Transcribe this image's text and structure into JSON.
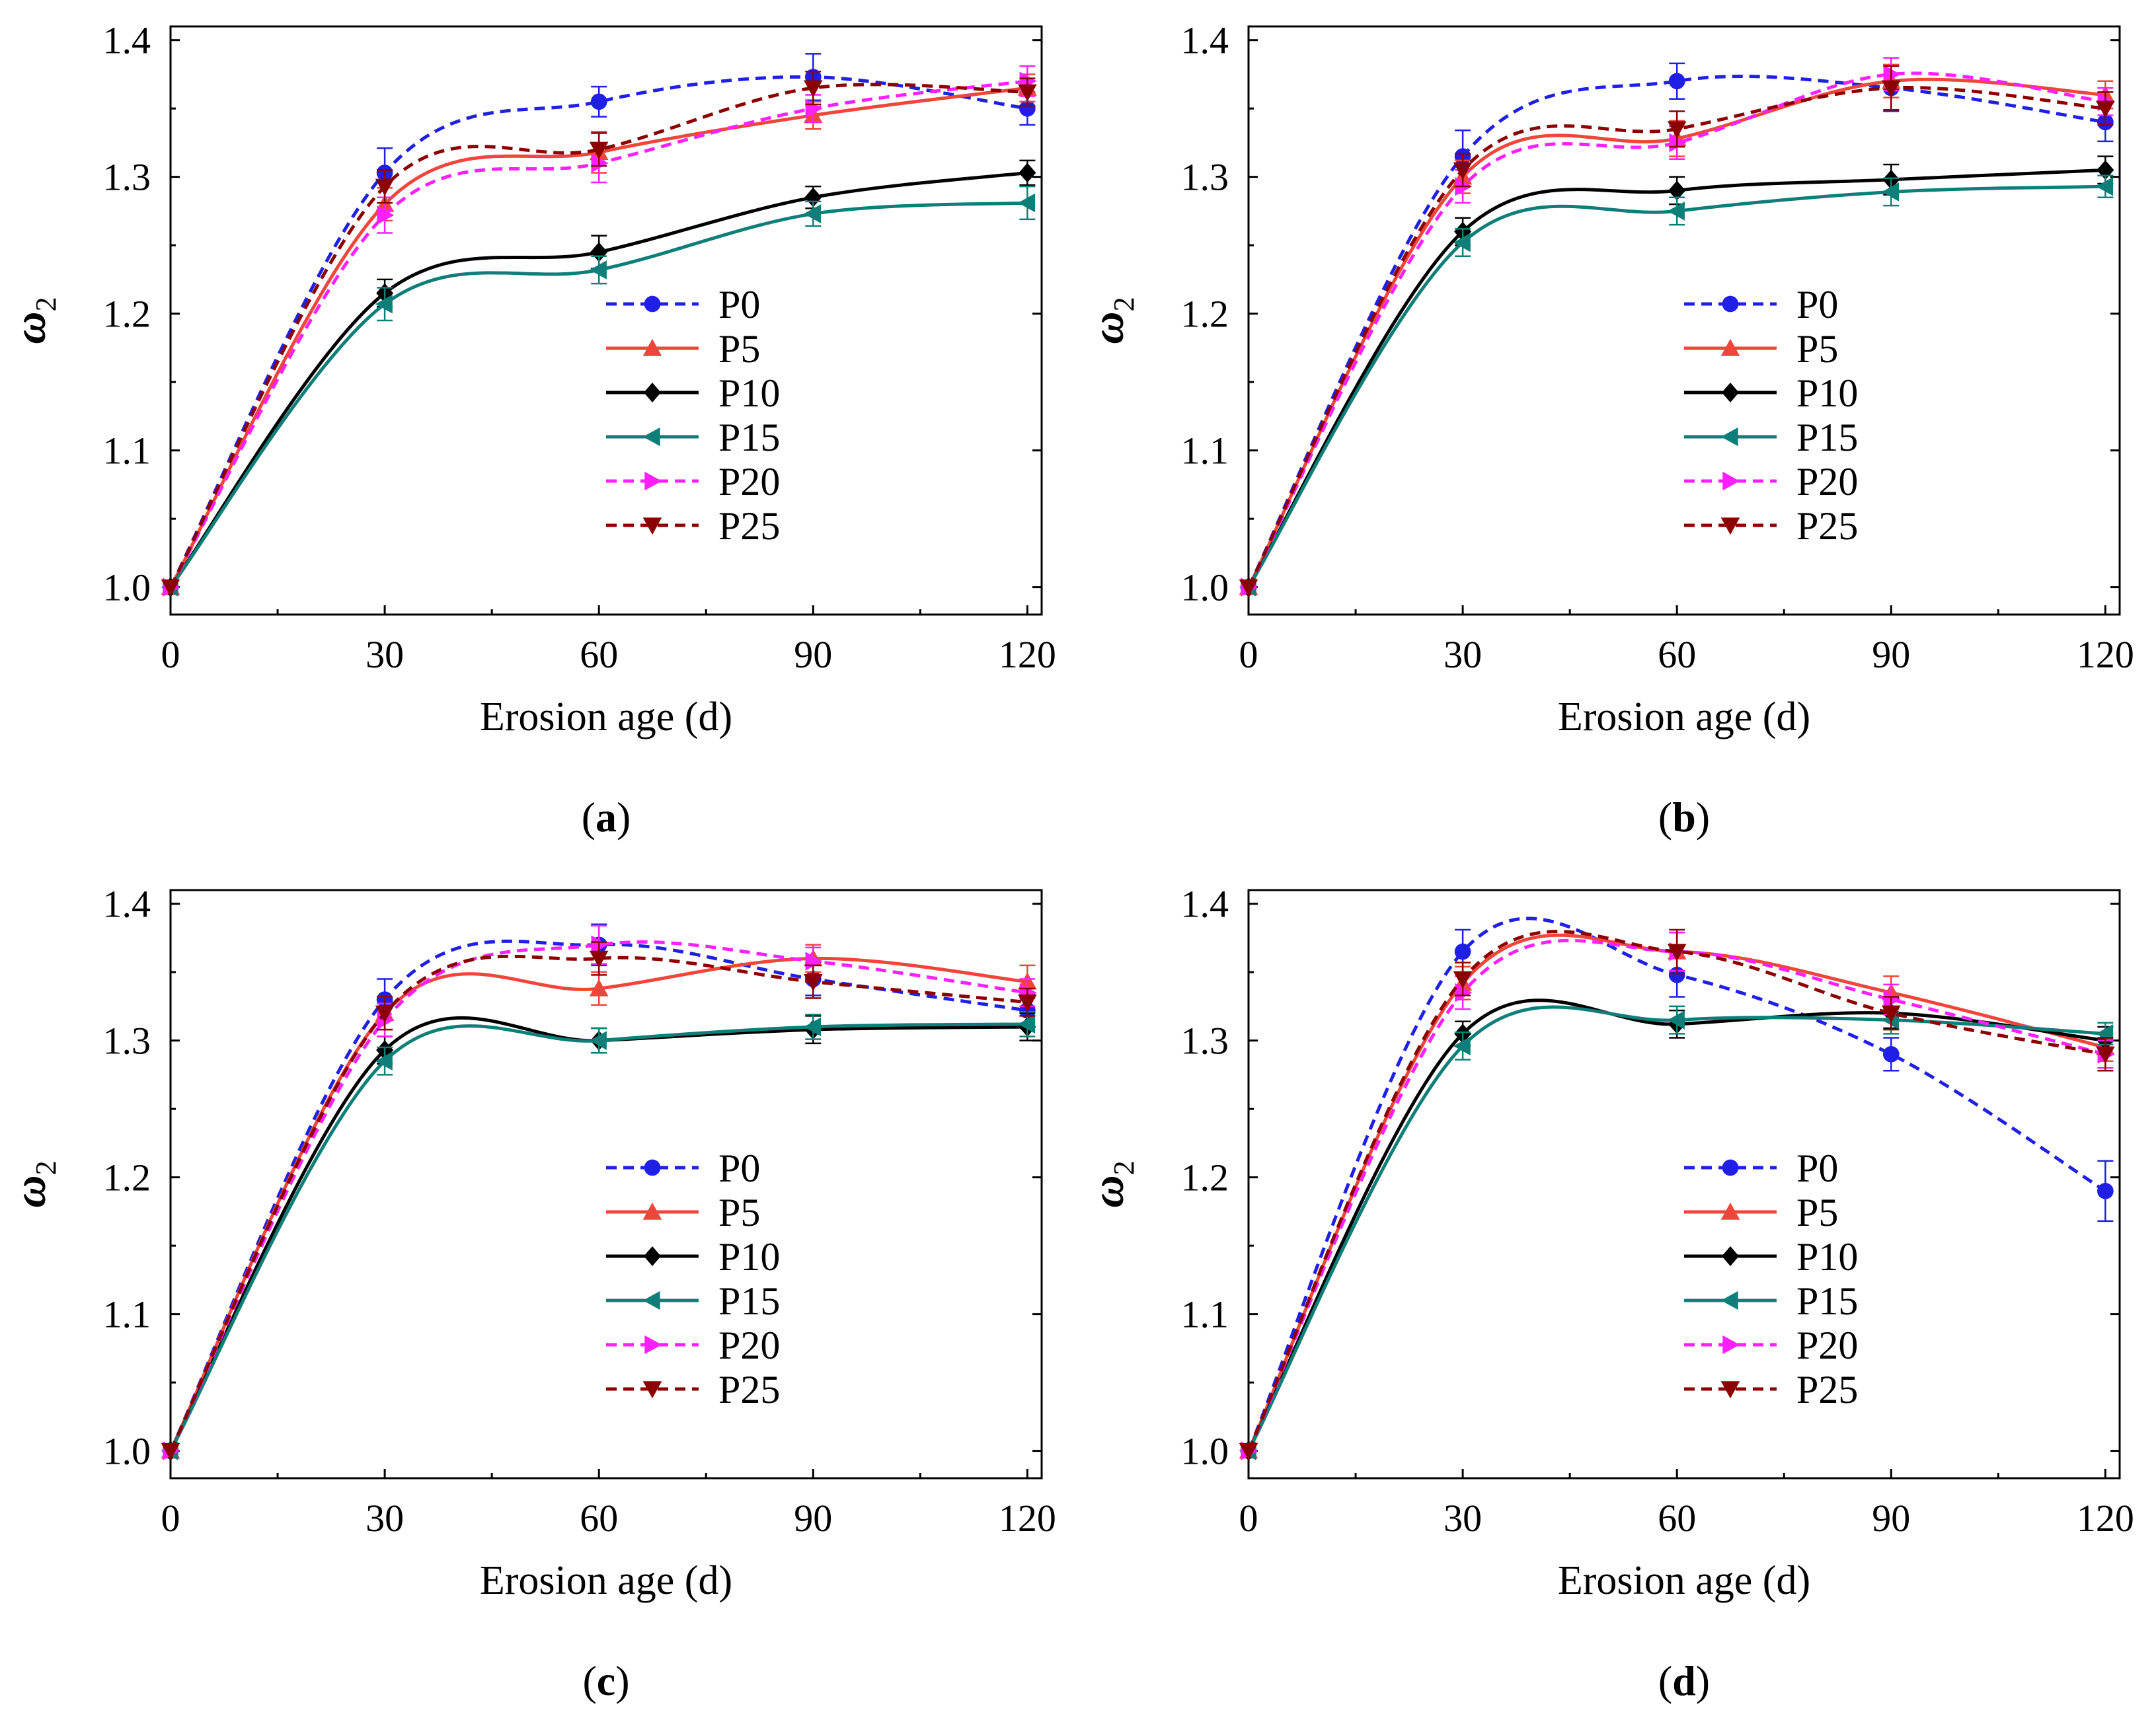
{
  "figure": {
    "series_styles": [
      {
        "name": "P0",
        "color": "#1f1fe6",
        "dashed": true,
        "marker": "circle"
      },
      {
        "name": "P5",
        "color": "#f0453a",
        "dashed": false,
        "marker": "triangle-up"
      },
      {
        "name": "P10",
        "color": "#000000",
        "dashed": false,
        "marker": "diamond"
      },
      {
        "name": "P15",
        "color": "#0e7f78",
        "dashed": false,
        "marker": "triangle-left"
      },
      {
        "name": "P20",
        "color": "#ff1fff",
        "dashed": true,
        "marker": "triangle-right"
      },
      {
        "name": "P25",
        "color": "#8b0000",
        "dashed": true,
        "marker": "triangle-down"
      }
    ]
  },
  "chart_data": [
    {
      "type": "line",
      "panel_label": "a",
      "title": "",
      "xlabel": "Erosion age (d)",
      "ylabel_symbol": "ω",
      "ylabel_subscript": "2",
      "x": [
        0,
        30,
        60,
        90,
        120
      ],
      "xticks": [
        "0",
        "30",
        "60",
        "90",
        "120"
      ],
      "yticks": [
        "1.0",
        "1.1",
        "1.2",
        "1.3",
        "1.4"
      ],
      "xlim": [
        0,
        122
      ],
      "ylim": [
        0.98,
        1.41
      ],
      "legend_position": "center-right",
      "series": [
        {
          "name": "P0",
          "values": [
            1.0,
            1.303,
            1.355,
            1.373,
            1.35
          ],
          "errors": [
            0,
            0.018,
            0.011,
            0.017,
            0.012
          ]
        },
        {
          "name": "P5",
          "values": [
            1.0,
            1.28,
            1.318,
            1.345,
            1.365
          ],
          "errors": [
            0,
            0.012,
            0.015,
            0.01,
            0.01
          ]
        },
        {
          "name": "P10",
          "values": [
            1.0,
            1.215,
            1.245,
            1.285,
            1.303
          ],
          "errors": [
            0,
            0.01,
            0.012,
            0.008,
            0.009
          ]
        },
        {
          "name": "P15",
          "values": [
            1.0,
            1.207,
            1.232,
            1.273,
            1.281
          ],
          "errors": [
            0,
            0.012,
            0.01,
            0.009,
            0.012
          ]
        },
        {
          "name": "P20",
          "values": [
            1.0,
            1.272,
            1.31,
            1.35,
            1.37
          ],
          "errors": [
            0,
            0.013,
            0.014,
            0.01,
            0.011
          ]
        },
        {
          "name": "P25",
          "values": [
            1.0,
            1.293,
            1.32,
            1.365,
            1.362
          ],
          "errors": [
            0,
            0.012,
            0.012,
            0.012,
            0.01
          ]
        }
      ]
    },
    {
      "type": "line",
      "panel_label": "b",
      "title": "",
      "xlabel": "Erosion age (d)",
      "ylabel_symbol": "ω",
      "ylabel_subscript": "2",
      "x": [
        0,
        30,
        60,
        90,
        120
      ],
      "xticks": [
        "0",
        "30",
        "60",
        "90",
        "120"
      ],
      "yticks": [
        "1.0",
        "1.1",
        "1.2",
        "1.3",
        "1.4"
      ],
      "xlim": [
        0,
        122
      ],
      "ylim": [
        0.98,
        1.41
      ],
      "legend_position": "center-right",
      "series": [
        {
          "name": "P0",
          "values": [
            1.0,
            1.315,
            1.37,
            1.365,
            1.34
          ],
          "errors": [
            0,
            0.019,
            0.013,
            0.017,
            0.014
          ]
        },
        {
          "name": "P5",
          "values": [
            1.0,
            1.3,
            1.328,
            1.37,
            1.36
          ],
          "errors": [
            0,
            0.012,
            0.013,
            0.012,
            0.01
          ]
        },
        {
          "name": "P10",
          "values": [
            1.0,
            1.26,
            1.29,
            1.298,
            1.305
          ],
          "errors": [
            0,
            0.01,
            0.01,
            0.011,
            0.01
          ]
        },
        {
          "name": "P15",
          "values": [
            1.0,
            1.252,
            1.275,
            1.289,
            1.293
          ],
          "errors": [
            0,
            0.01,
            0.01,
            0.01,
            0.008
          ]
        },
        {
          "name": "P20",
          "values": [
            1.0,
            1.293,
            1.325,
            1.375,
            1.355
          ],
          "errors": [
            0,
            0.012,
            0.012,
            0.012,
            0.01
          ]
        },
        {
          "name": "P25",
          "values": [
            1.0,
            1.305,
            1.335,
            1.365,
            1.35
          ],
          "errors": [
            0,
            0.012,
            0.013,
            0.016,
            0.012
          ]
        }
      ]
    },
    {
      "type": "line",
      "panel_label": "c",
      "title": "",
      "xlabel": "Erosion age (d)",
      "ylabel_symbol": "ω",
      "ylabel_subscript": "2",
      "x": [
        0,
        30,
        60,
        90,
        120
      ],
      "xticks": [
        "0",
        "30",
        "60",
        "90",
        "120"
      ],
      "yticks": [
        "1.0",
        "1.1",
        "1.2",
        "1.3",
        "1.4"
      ],
      "xlim": [
        0,
        122
      ],
      "ylim": [
        0.98,
        1.41
      ],
      "legend_position": "center-right",
      "series": [
        {
          "name": "P0",
          "values": [
            1.0,
            1.33,
            1.37,
            1.345,
            1.322
          ],
          "errors": [
            0,
            0.015,
            0.015,
            0.012,
            0.012
          ]
        },
        {
          "name": "P5",
          "values": [
            1.0,
            1.32,
            1.338,
            1.36,
            1.343
          ],
          "errors": [
            0,
            0.012,
            0.012,
            0.01,
            0.012
          ]
        },
        {
          "name": "P10",
          "values": [
            1.0,
            1.293,
            1.3,
            1.308,
            1.31
          ],
          "errors": [
            0,
            0.01,
            0.009,
            0.01,
            0.01
          ]
        },
        {
          "name": "P15",
          "values": [
            1.0,
            1.285,
            1.3,
            1.31,
            1.312
          ],
          "errors": [
            0,
            0.01,
            0.009,
            0.009,
            0.009
          ]
        },
        {
          "name": "P20",
          "values": [
            1.0,
            1.315,
            1.37,
            1.358,
            1.335
          ],
          "errors": [
            0,
            0.012,
            0.014,
            0.01,
            0.01
          ]
        },
        {
          "name": "P25",
          "values": [
            1.0,
            1.32,
            1.36,
            1.343,
            1.328
          ],
          "errors": [
            0,
            0.012,
            0.012,
            0.012,
            0.01
          ]
        }
      ]
    },
    {
      "type": "line",
      "panel_label": "d",
      "title": "",
      "xlabel": "Erosion age (d)",
      "ylabel_symbol": "ω",
      "ylabel_subscript": "2",
      "x": [
        0,
        30,
        60,
        90,
        120
      ],
      "xticks": [
        "0",
        "30",
        "60",
        "90",
        "120"
      ],
      "yticks": [
        "1.0",
        "1.1",
        "1.2",
        "1.3",
        "1.4"
      ],
      "xlim": [
        0,
        122
      ],
      "ylim": [
        0.98,
        1.41
      ],
      "legend_position": "center-right",
      "series": [
        {
          "name": "P0",
          "values": [
            1.0,
            1.365,
            1.348,
            1.29,
            1.19
          ],
          "errors": [
            0,
            0.016,
            0.016,
            0.012,
            0.022
          ]
        },
        {
          "name": "P5",
          "values": [
            1.0,
            1.342,
            1.365,
            1.335,
            1.295
          ],
          "errors": [
            0,
            0.012,
            0.014,
            0.012,
            0.01
          ]
        },
        {
          "name": "P10",
          "values": [
            1.0,
            1.305,
            1.312,
            1.32,
            1.3
          ],
          "errors": [
            0,
            0.009,
            0.01,
            0.011,
            0.01
          ]
        },
        {
          "name": "P15",
          "values": [
            1.0,
            1.296,
            1.315,
            1.315,
            1.305
          ],
          "errors": [
            0,
            0.01,
            0.01,
            0.01,
            0.008
          ]
        },
        {
          "name": "P20",
          "values": [
            1.0,
            1.335,
            1.365,
            1.33,
            1.29
          ],
          "errors": [
            0,
            0.012,
            0.014,
            0.011,
            0.01
          ]
        },
        {
          "name": "P25",
          "values": [
            1.0,
            1.345,
            1.365,
            1.32,
            1.29
          ],
          "errors": [
            0,
            0.012,
            0.016,
            0.012,
            0.012
          ]
        }
      ]
    }
  ]
}
